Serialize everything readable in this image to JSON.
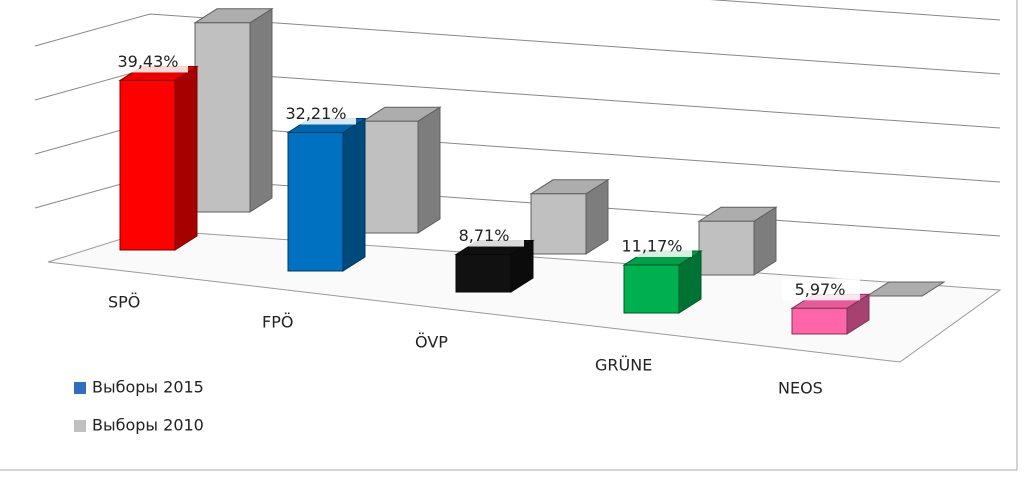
{
  "chart_data": {
    "type": "bar3d",
    "categories": [
      "SPÖ",
      "FPÖ",
      "ÖVP",
      "GRÜNE",
      "NEOS"
    ],
    "series": [
      {
        "name": "Выборы 2015",
        "color": "#2e6fbf",
        "bar_colors": [
          "#ff0000",
          "#0070c0",
          "#111111",
          "#00b050",
          "#ff66aa"
        ],
        "values": [
          39.43,
          32.21,
          8.71,
          11.17,
          5.97
        ],
        "value_labels": [
          "39,43%",
          "32,21%",
          "8,71%",
          "11,17%",
          "5,97%"
        ]
      },
      {
        "name": "Выборы 2010",
        "color": "#c0c0c0",
        "values": [
          44,
          26,
          14,
          12.5,
          0
        ]
      }
    ],
    "ylim": [
      0,
      50
    ],
    "grid": true
  }
}
